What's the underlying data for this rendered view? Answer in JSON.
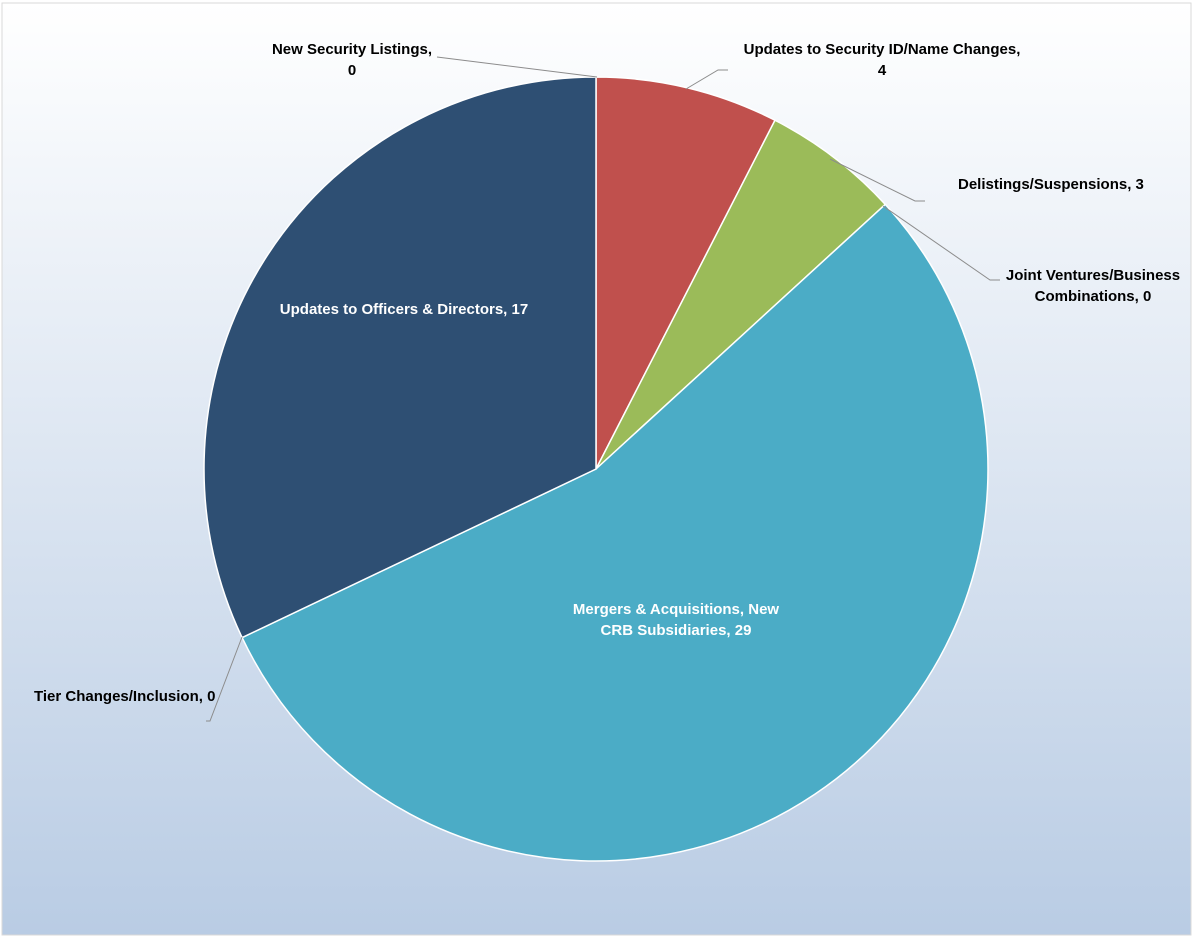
{
  "chart_data": {
    "type": "pie",
    "start_angle_deg": 0,
    "direction": "clockwise",
    "slices": [
      {
        "name": "New Security Listings",
        "value": 0,
        "color": "#2E6FB5",
        "label_lines": [
          "New Security Listings,",
          "0"
        ],
        "label_inside": false,
        "leader_line": true
      },
      {
        "name": "Updates to Security ID/Name Changes",
        "value": 4,
        "color": "#C0504D",
        "label_lines": [
          "Updates to Security ID/Name Changes,",
          "4"
        ],
        "label_inside": false,
        "leader_line": true
      },
      {
        "name": "Delistings/Suspensions",
        "value": 3,
        "color": "#9BBB59",
        "label_lines": [
          "Delistings/Suspensions, 3"
        ],
        "label_inside": false,
        "leader_line": true
      },
      {
        "name": "Joint Ventures/Business Combinations",
        "value": 0,
        "color": "#8064A2",
        "label_lines": [
          "Joint Ventures/Business",
          "Combinations, 0"
        ],
        "label_inside": false,
        "leader_line": true
      },
      {
        "name": "Mergers & Acquisitions, New CRB Subsidiaries",
        "value": 29,
        "color": "#4BACC6",
        "label_lines": [
          "Mergers & Acquisitions, New",
          "CRB Subsidiaries, 29"
        ],
        "label_inside": true,
        "leader_line": false
      },
      {
        "name": "Tier Changes/Inclusion",
        "value": 0,
        "color": "#F79646",
        "label_lines": [
          "Tier Changes/Inclusion, 0"
        ],
        "label_inside": false,
        "leader_line": true
      },
      {
        "name": "Updates to Officers & Directors",
        "value": 17,
        "color": "#2E4F73",
        "label_lines": [
          "Updates to Officers & Directors, 17"
        ],
        "label_inside": true,
        "leader_line": false
      }
    ],
    "legend": "none",
    "background": {
      "top": "#FFFFFF",
      "bottom": "#B9CCE4"
    },
    "inside_label_color": "#FFFFFF",
    "outside_label_color": "#000000",
    "leader_line_color": "#8C8C8C"
  }
}
